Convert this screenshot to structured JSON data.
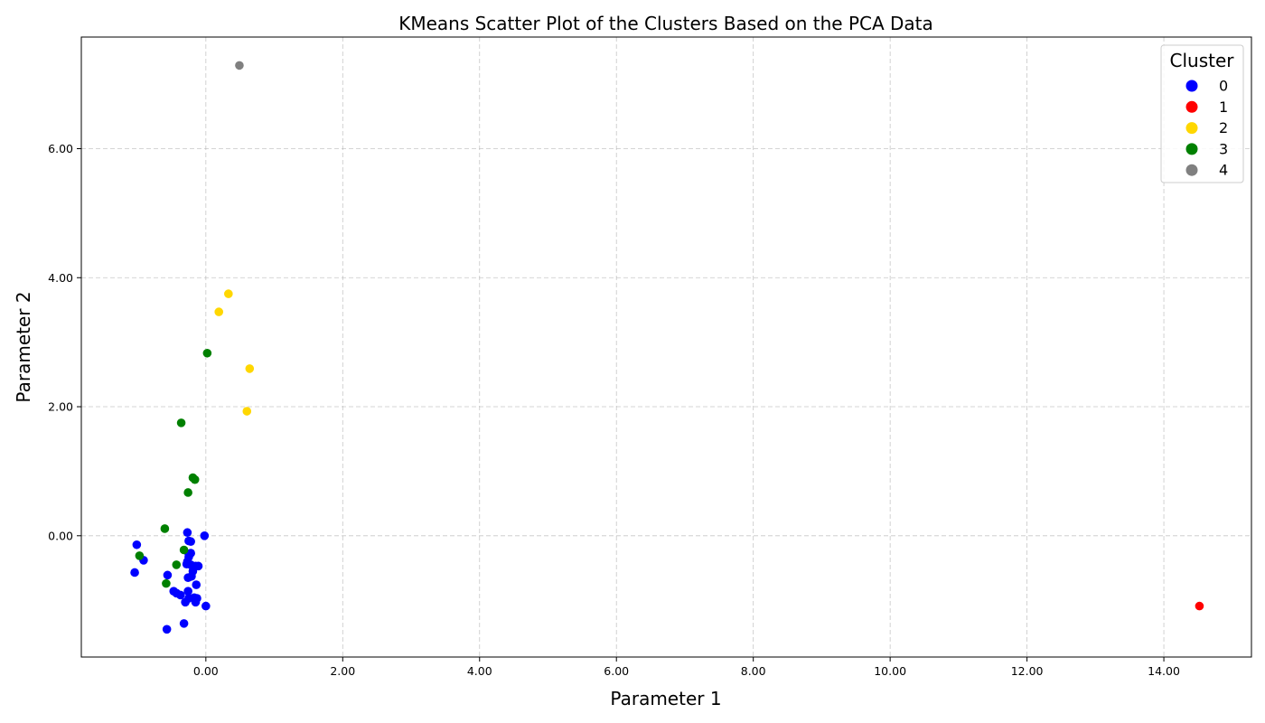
{
  "chart_data": {
    "type": "scatter",
    "title": "KMeans Scatter Plot of the Clusters Based on the PCA Data",
    "xlabel": "Parameter 1",
    "ylabel": "Parameter 2",
    "xlim": [
      -1.82,
      15.28
    ],
    "ylim": [
      -1.88,
      7.73
    ],
    "xticks": [
      0,
      2,
      4,
      6,
      8,
      10,
      12,
      14
    ],
    "yticks": [
      0,
      2,
      4,
      6
    ],
    "tick_format": "2dp",
    "grid": true,
    "grid_style": "dashed",
    "legend": {
      "title": "Cluster",
      "placement": "top-right"
    },
    "series": [
      {
        "name": "0",
        "color": "#0000ff",
        "points": [
          [
            -1.01,
            -0.14
          ],
          [
            -1.04,
            -0.57
          ],
          [
            -0.91,
            -0.38
          ],
          [
            -0.56,
            -0.61
          ],
          [
            -0.27,
            0.05
          ],
          [
            -0.25,
            -0.08
          ],
          [
            -0.22,
            -0.09
          ],
          [
            -0.02,
            0.0
          ],
          [
            -0.25,
            -0.28
          ],
          [
            -0.22,
            -0.27
          ],
          [
            -0.25,
            -0.33
          ],
          [
            -0.27,
            -0.4
          ],
          [
            -0.22,
            -0.45
          ],
          [
            -0.15,
            -0.47
          ],
          [
            -0.11,
            -0.47
          ],
          [
            -0.19,
            -0.55
          ],
          [
            -0.26,
            -0.65
          ],
          [
            -0.21,
            -0.63
          ],
          [
            -0.14,
            -0.76
          ],
          [
            -0.47,
            -0.86
          ],
          [
            -0.43,
            -0.89
          ],
          [
            -0.37,
            -0.92
          ],
          [
            -0.26,
            -0.86
          ],
          [
            -0.25,
            -0.97
          ],
          [
            -0.17,
            -0.96
          ],
          [
            -0.13,
            -0.97
          ],
          [
            -0.3,
            -1.03
          ],
          [
            -0.15,
            -1.03
          ],
          [
            0.0,
            -1.09
          ],
          [
            -0.57,
            -1.45
          ],
          [
            -0.32,
            -1.36
          ],
          [
            -0.28,
            -0.44
          ]
        ]
      },
      {
        "name": "1",
        "color": "#ff0000",
        "points": [
          [
            14.52,
            -1.09
          ]
        ]
      },
      {
        "name": "2",
        "color": "#ffd700",
        "points": [
          [
            0.33,
            3.75
          ],
          [
            0.19,
            3.47
          ],
          [
            0.64,
            2.59
          ],
          [
            0.6,
            1.93
          ]
        ]
      },
      {
        "name": "3",
        "color": "#008000",
        "points": [
          [
            0.02,
            2.83
          ],
          [
            -0.36,
            1.75
          ],
          [
            -0.19,
            0.9
          ],
          [
            -0.16,
            0.87
          ],
          [
            -0.26,
            0.67
          ],
          [
            -0.6,
            0.11
          ],
          [
            -0.32,
            -0.22
          ],
          [
            -0.97,
            -0.31
          ],
          [
            -0.43,
            -0.45
          ],
          [
            -0.58,
            -0.74
          ]
        ]
      },
      {
        "name": "4",
        "color": "#808080",
        "points": [
          [
            0.49,
            7.29
          ]
        ]
      }
    ]
  }
}
